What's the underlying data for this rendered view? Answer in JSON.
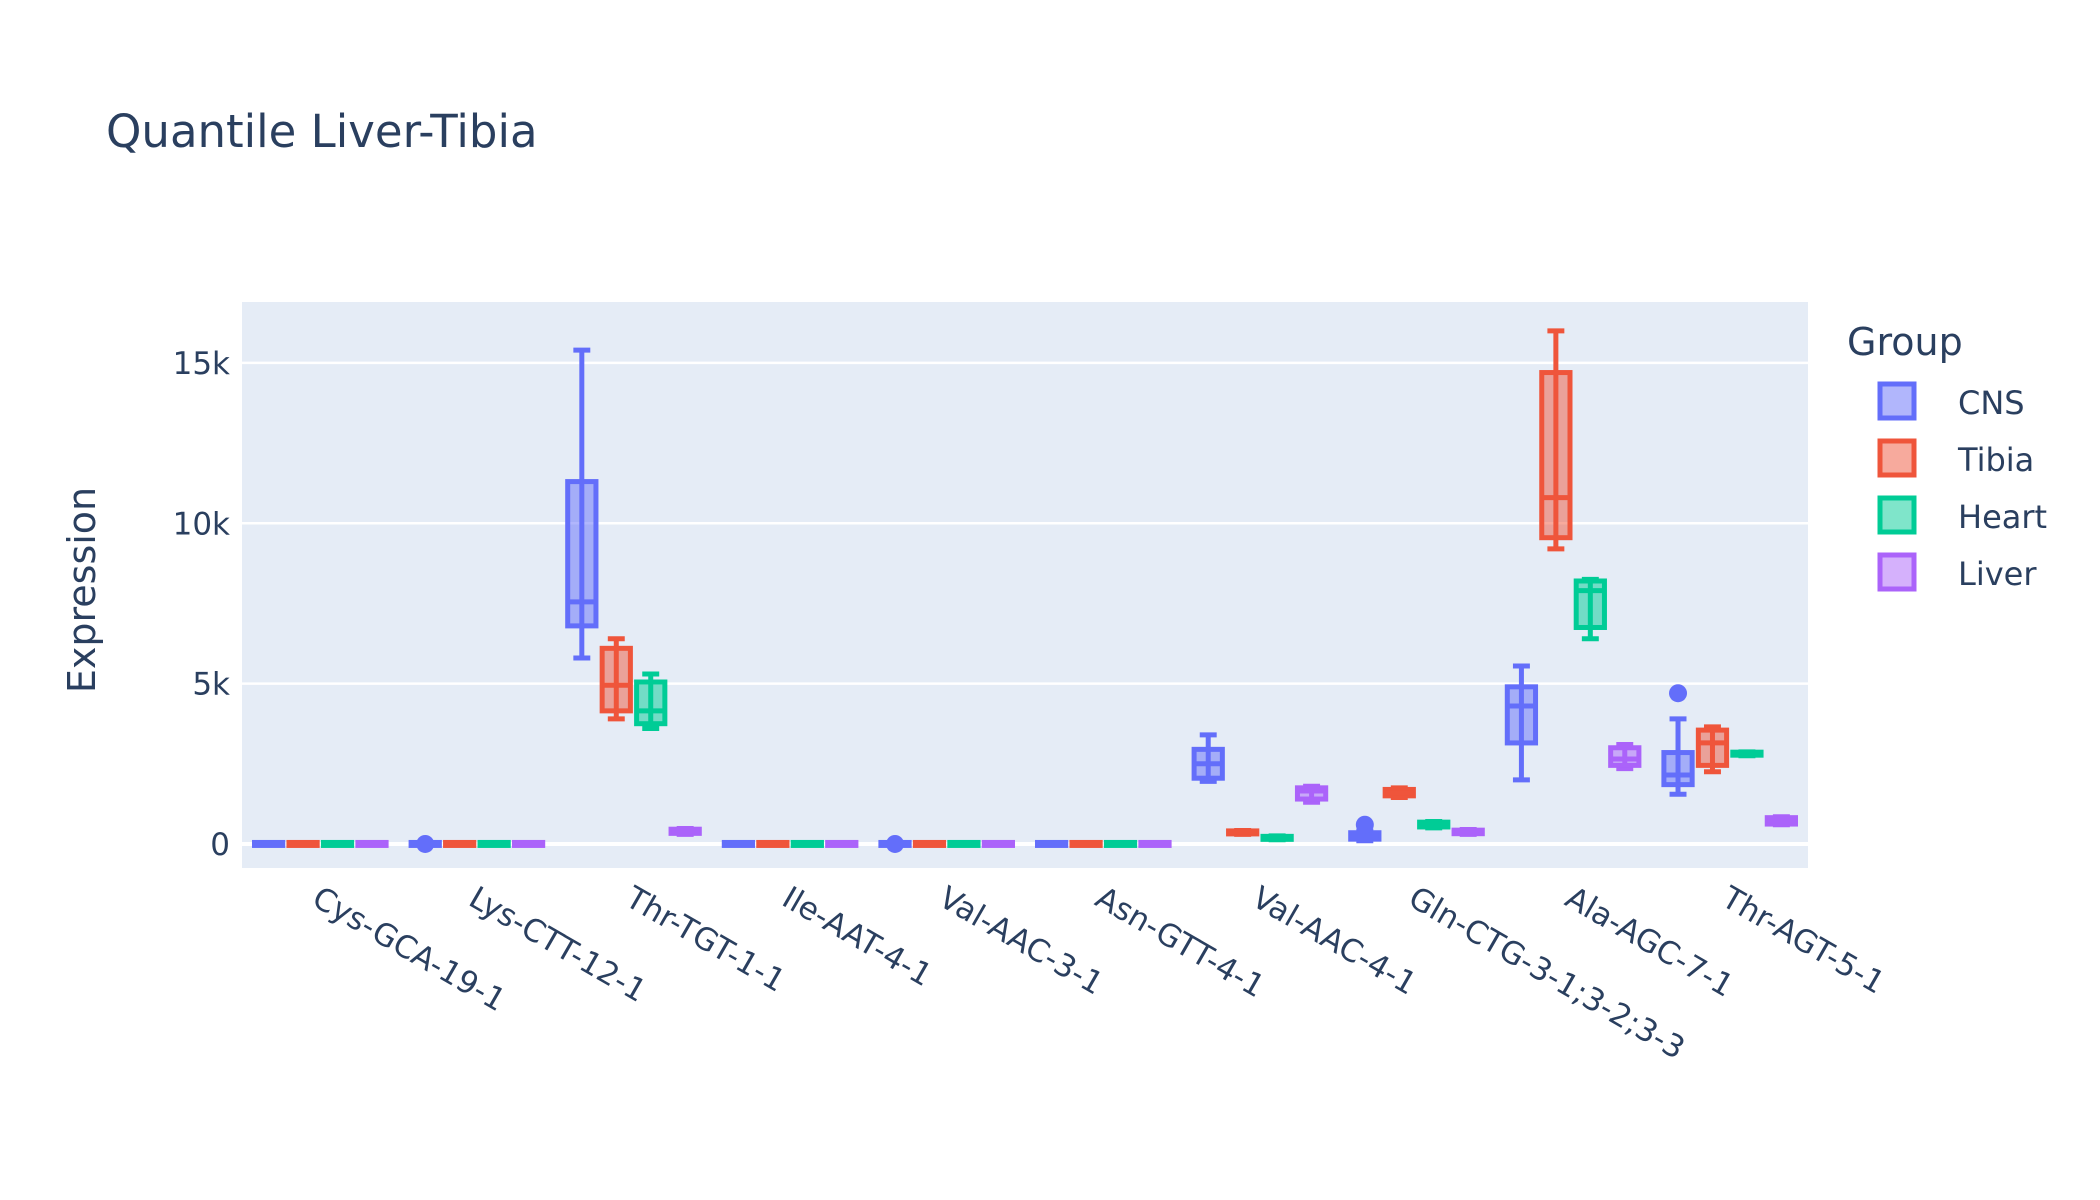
{
  "chart_data": {
    "type": "box",
    "title": "Quantile Liver-Tibia",
    "xlabel": "",
    "ylabel": "Expression",
    "ylim": [
      -750,
      16900
    ],
    "yticks": [
      0,
      5000,
      10000,
      15000
    ],
    "ytick_labels": [
      "0",
      "5k",
      "10k",
      "15k"
    ],
    "grid": true,
    "legend": {
      "title": "Group",
      "placement": "right"
    },
    "categories": [
      "Cys-GCA-19-1",
      "Lys-CTT-12-1",
      "Thr-TGT-1-1",
      "Ile-AAT-4-1",
      "Val-AAC-3-1",
      "Asn-GTT-4-1",
      "Val-AAC-4-1",
      "Gln-CTG-3-1;3-2;3-3",
      "Ala-AGC-7-1",
      "Thr-AGT-5-1"
    ],
    "series": [
      {
        "name": "CNS",
        "color": "#636efa",
        "boxes": [
          {
            "min": 0,
            "q1": 0,
            "median": 0,
            "q3": 0,
            "max": 0
          },
          {
            "min": 0,
            "q1": 0,
            "median": 0,
            "q3": 0,
            "max": 0,
            "outliers": [
              0
            ]
          },
          {
            "min": 5800,
            "q1": 6800,
            "median": 7550,
            "q3": 11300,
            "max": 15400
          },
          {
            "min": 0,
            "q1": 0,
            "median": 0,
            "q3": 0,
            "max": 0
          },
          {
            "min": 0,
            "q1": 0,
            "median": 0,
            "q3": 0,
            "max": 0,
            "outliers": [
              0
            ]
          },
          {
            "min": 0,
            "q1": 0,
            "median": 0,
            "q3": 0,
            "max": 0
          },
          {
            "min": 1950,
            "q1": 2050,
            "median": 2500,
            "q3": 2950,
            "max": 3400
          },
          {
            "min": 100,
            "q1": 150,
            "median": 250,
            "q3": 350,
            "max": 400,
            "outliers": [
              600
            ]
          },
          {
            "min": 2000,
            "q1": 3150,
            "median": 4300,
            "q3": 4900,
            "max": 5550
          },
          {
            "min": 1550,
            "q1": 1850,
            "median": 2150,
            "q3": 2850,
            "max": 3900,
            "outliers": [
              4700
            ]
          }
        ]
      },
      {
        "name": "Tibia",
        "color": "#ef553b",
        "boxes": [
          {
            "min": 0,
            "q1": 0,
            "median": 0,
            "q3": 0,
            "max": 0
          },
          {
            "min": 0,
            "q1": 0,
            "median": 0,
            "q3": 0,
            "max": 0
          },
          {
            "min": 3900,
            "q1": 4150,
            "median": 4950,
            "q3": 6100,
            "max": 6400
          },
          {
            "min": 0,
            "q1": 0,
            "median": 0,
            "q3": 0,
            "max": 0
          },
          {
            "min": 0,
            "q1": 0,
            "median": 0,
            "q3": 0,
            "max": 0
          },
          {
            "min": 0,
            "q1": 0,
            "median": 0,
            "q3": 0,
            "max": 0
          },
          {
            "min": 300,
            "q1": 320,
            "median": 360,
            "q3": 400,
            "max": 420
          },
          {
            "min": 1450,
            "q1": 1500,
            "median": 1600,
            "q3": 1700,
            "max": 1750
          },
          {
            "min": 9200,
            "q1": 9550,
            "median": 10800,
            "q3": 14700,
            "max": 16000
          },
          {
            "min": 2250,
            "q1": 2450,
            "median": 3150,
            "q3": 3550,
            "max": 3650
          }
        ]
      },
      {
        "name": "Heart",
        "color": "#00cc96",
        "boxes": [
          {
            "min": 0,
            "q1": 0,
            "median": 0,
            "q3": 0,
            "max": 0
          },
          {
            "min": 0,
            "q1": 0,
            "median": 0,
            "q3": 0,
            "max": 0
          },
          {
            "min": 3600,
            "q1": 3750,
            "median": 4150,
            "q3": 5050,
            "max": 5300
          },
          {
            "min": 0,
            "q1": 0,
            "median": 0,
            "q3": 0,
            "max": 0
          },
          {
            "min": 0,
            "q1": 0,
            "median": 0,
            "q3": 0,
            "max": 0
          },
          {
            "min": 0,
            "q1": 0,
            "median": 0,
            "q3": 0,
            "max": 0
          },
          {
            "min": 130,
            "q1": 150,
            "median": 190,
            "q3": 230,
            "max": 250
          },
          {
            "min": 500,
            "q1": 530,
            "median": 600,
            "q3": 680,
            "max": 700
          },
          {
            "min": 6400,
            "q1": 6750,
            "median": 7900,
            "q3": 8200,
            "max": 8250
          },
          {
            "min": 2750,
            "q1": 2780,
            "median": 2820,
            "q3": 2850,
            "max": 2870
          }
        ]
      },
      {
        "name": "Liver",
        "color": "#ab63fa",
        "boxes": [
          {
            "min": 0,
            "q1": 0,
            "median": 0,
            "q3": 0,
            "max": 0
          },
          {
            "min": 0,
            "q1": 0,
            "median": 0,
            "q3": 0,
            "max": 0
          },
          {
            "min": 300,
            "q1": 330,
            "median": 400,
            "q3": 460,
            "max": 480
          },
          {
            "min": 0,
            "q1": 0,
            "median": 0,
            "q3": 0,
            "max": 0
          },
          {
            "min": 0,
            "q1": 0,
            "median": 0,
            "q3": 0,
            "max": 0
          },
          {
            "min": 0,
            "q1": 0,
            "median": 0,
            "q3": 0,
            "max": 0
          },
          {
            "min": 1300,
            "q1": 1400,
            "median": 1650,
            "q3": 1750,
            "max": 1800
          },
          {
            "min": 300,
            "q1": 320,
            "median": 370,
            "q3": 430,
            "max": 450
          },
          {
            "min": 2350,
            "q1": 2450,
            "median": 2650,
            "q3": 3000,
            "max": 3100
          },
          {
            "min": 600,
            "q1": 620,
            "median": 720,
            "q3": 820,
            "max": 850
          }
        ]
      }
    ]
  }
}
